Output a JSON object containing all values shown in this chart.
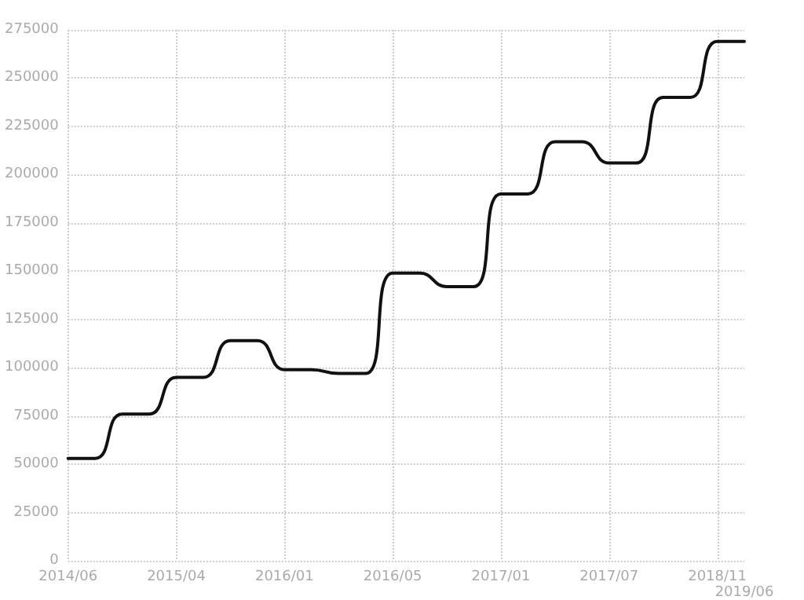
{
  "chart_data": {
    "type": "line",
    "categories": [
      "2014/06",
      null,
      null,
      null,
      "2015/04",
      null,
      null,
      null,
      "2016/01",
      null,
      null,
      null,
      "2016/05",
      null,
      null,
      null,
      "2017/01",
      null,
      null,
      null,
      "2017/07",
      null,
      null,
      null,
      "2018/11",
      "2019/06"
    ],
    "series": [
      {
        "color": "#111111",
        "values": [
          53000,
          53000,
          76000,
          76000,
          95000,
          95000,
          114000,
          114000,
          99000,
          99000,
          97000,
          97000,
          149000,
          149000,
          142000,
          142000,
          190000,
          190000,
          217000,
          217000,
          206000,
          206000,
          240000,
          240000,
          269000,
          269000
        ]
      }
    ],
    "ylim": [
      0,
      275000
    ],
    "yticks": [
      0,
      25000,
      50000,
      75000,
      100000,
      125000,
      150000,
      175000,
      200000,
      225000,
      250000,
      275000
    ],
    "grid": true,
    "marker": "none",
    "line_style": "solid"
  }
}
